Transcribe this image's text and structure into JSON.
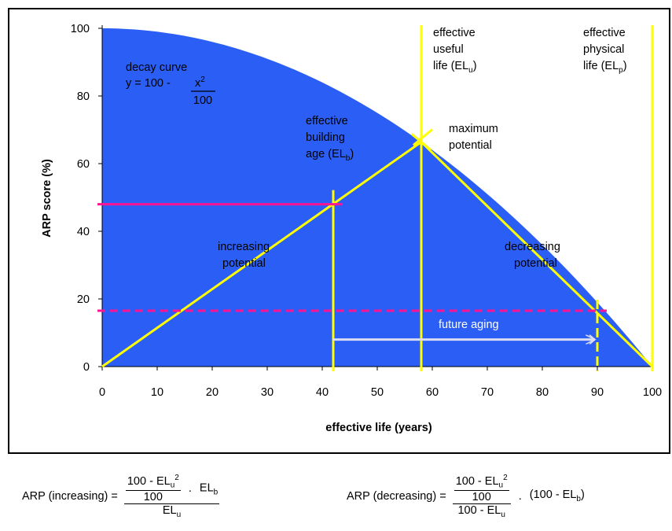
{
  "chart_data": {
    "type": "area",
    "xlabel": "effective life (years)",
    "ylabel": "ARP score (%)",
    "xlim": [
      0,
      100
    ],
    "ylim": [
      0,
      100
    ],
    "x_ticks": [
      0,
      10,
      20,
      30,
      40,
      50,
      60,
      70,
      80,
      90,
      100
    ],
    "y_ticks": [
      0,
      20,
      40,
      60,
      80,
      100
    ],
    "series": [
      {
        "name": "decay curve",
        "x": [
          0,
          10,
          20,
          30,
          40,
          50,
          58,
          60,
          70,
          80,
          90,
          100
        ],
        "y": [
          100,
          99,
          96,
          91,
          84,
          75,
          66.4,
          64,
          51,
          36,
          19,
          0
        ]
      }
    ],
    "lines": {
      "increasing": {
        "x": [
          0,
          58
        ],
        "y": [
          0,
          66.4
        ]
      },
      "decreasing": {
        "x": [
          58,
          100
        ],
        "y": [
          66.4,
          0
        ]
      },
      "el_b_x": 42,
      "el_u_x": 58,
      "el_p_x": 100,
      "future_x": 90,
      "arp_increasing_y": 48,
      "arp_decreasing_y": 16.5,
      "future_arrow_from": 42,
      "future_arrow_to": 90
    },
    "colors": {
      "area": "#2b5ef5",
      "marker_lines": "#ffff00",
      "arp_lines": "#ff1493",
      "arrow": "#d9dcf2"
    },
    "annotations": {
      "decay_curve": "decay curve",
      "decay_eq_left": "y = 100 -",
      "decay_eq_num": "x",
      "decay_eq_sup": "2",
      "decay_eq_den": "100",
      "eb_line1": "effective",
      "eb_line2": "building",
      "eb_line3": "age (EL",
      "eb_sub": "b",
      "eu_line1": "effective",
      "eu_line2": "useful",
      "eu_line3": "life (EL",
      "eu_sub": "u",
      "ep_line1": "effective",
      "ep_line2": "physical",
      "ep_line3": "life (EL",
      "ep_sub": "p",
      "paren": ")",
      "max_line1": "maximum",
      "max_line2": "potential",
      "inc_line1": "increasing",
      "inc_line2": "potential",
      "dec_line1": "decreasing",
      "dec_line2": "potential",
      "future": "future aging"
    }
  },
  "formulas": {
    "increasing_label": "ARP (increasing) =",
    "decreasing_label": "ARP (decreasing) =",
    "top_prefix": "100 - ",
    "eu_main": "EL",
    "eu_sub": "u",
    "sup2": "2",
    "hundred": "100",
    "dot": ".",
    "elb_main": "EL",
    "elb_sub": "b",
    "dec_tail": "(100 - EL",
    "dec_tail_sub": "b",
    "close": ")",
    "dec_den_prefix": "100 - "
  }
}
